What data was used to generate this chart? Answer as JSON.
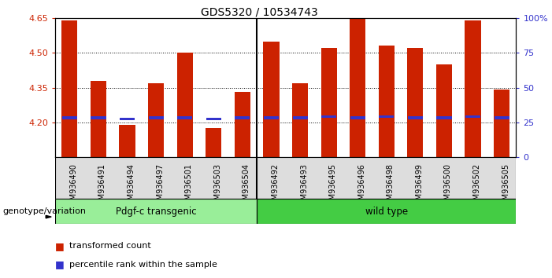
{
  "title": "GDS5320 / 10534743",
  "categories": [
    "GSM936490",
    "GSM936491",
    "GSM936494",
    "GSM936497",
    "GSM936501",
    "GSM936503",
    "GSM936504",
    "GSM936492",
    "GSM936493",
    "GSM936495",
    "GSM936496",
    "GSM936498",
    "GSM936499",
    "GSM936500",
    "GSM936502",
    "GSM936505"
  ],
  "bar_base": 4.05,
  "red_values": [
    4.64,
    4.38,
    4.19,
    4.37,
    4.5,
    4.175,
    4.33,
    4.55,
    4.37,
    4.52,
    4.72,
    4.53,
    4.52,
    4.45,
    4.64,
    4.34
  ],
  "blue_values": [
    4.22,
    4.22,
    4.215,
    4.22,
    4.22,
    4.215,
    4.22,
    4.22,
    4.22,
    4.225,
    4.22,
    4.225,
    4.22,
    4.22,
    4.225,
    4.22
  ],
  "ylim": [
    4.05,
    4.65
  ],
  "y2lim": [
    0,
    100
  ],
  "yticks": [
    4.2,
    4.35,
    4.5,
    4.65
  ],
  "ytick_labels": [
    "4.20",
    "4.35",
    "4.50",
    "4.65"
  ],
  "y2ticks": [
    0,
    25,
    50,
    75,
    100
  ],
  "y2tick_labels": [
    "0",
    "25",
    "50",
    "75",
    "100%"
  ],
  "bar_color": "#CC2200",
  "blue_color": "#3333CC",
  "group1_label": "Pdgf-c transgenic",
  "group2_label": "wild type",
  "group1_count": 7,
  "group2_count": 9,
  "group1_color": "#99EE99",
  "group2_color": "#44CC44",
  "genotype_label": "genotype/variation",
  "legend1": "transformed count",
  "legend2": "percentile rank within the sample",
  "bar_width": 0.55,
  "background_color": "#FFFFFF",
  "axis_label_color_left": "#CC2200",
  "axis_label_color_right": "#3333CC",
  "xticklabel_gray": "#CCCCCC"
}
